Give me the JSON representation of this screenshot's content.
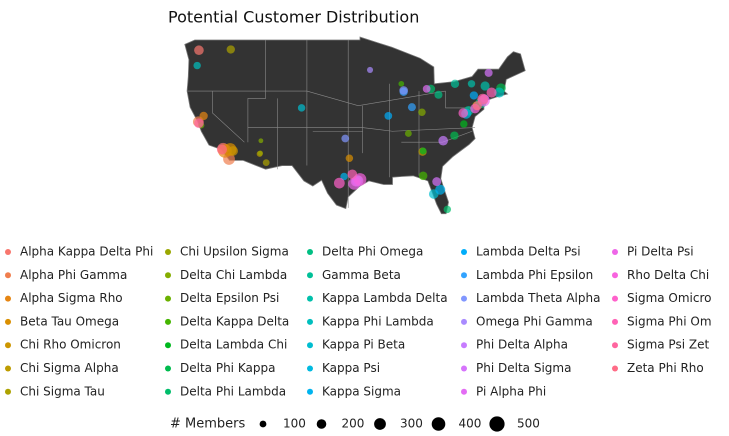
{
  "chart_data": {
    "type": "bubble-map",
    "title": "Potential Customer Distribution",
    "size_title": "# Members",
    "size_breaks": [
      100,
      200,
      300,
      400,
      500
    ],
    "series": [
      {
        "name": "Alpha Kappa Delta Phi",
        "color": "#F8766D",
        "x": [
          -118.2,
          -122.3
        ],
        "y": [
          34.1,
          47.6
        ],
        "sizes": [
          300,
          200
        ]
      },
      {
        "name": "Alpha Phi Gamma",
        "color": "#F07E4D",
        "x": [
          -122.4,
          -117.2
        ],
        "y": [
          37.8,
          32.7
        ],
        "sizes": [
          250,
          300
        ]
      },
      {
        "name": "Alpha Sigma Rho",
        "color": "#E68613",
        "x": [
          -121.5,
          -117.9
        ],
        "y": [
          38.6,
          33.8
        ],
        "sizes": [
          150,
          400
        ]
      },
      {
        "name": "Beta Tau Omega",
        "color": "#DA8F00",
        "x": [
          -117.0,
          -96.8
        ],
        "y": [
          34.0,
          32.8
        ],
        "sizes": [
          350,
          120
        ]
      },
      {
        "name": "Chi Rho Omicron",
        "color": "#CD9600",
        "x": [
          -116.5,
          -74.0
        ],
        "y": [
          33.8,
          40.7
        ],
        "sizes": [
          200,
          150
        ]
      },
      {
        "name": "Chi Sigma Alpha",
        "color": "#BE9C00",
        "x": [
          -84.4,
          -112.0
        ],
        "y": [
          33.7,
          33.4
        ],
        "sizes": [
          150,
          80
        ]
      },
      {
        "name": "Chi Sigma Tau",
        "color": "#ADA200",
        "x": [
          -116.9,
          -110.9
        ],
        "y": [
          47.7,
          32.2
        ],
        "sizes": [
          150,
          100
        ]
      },
      {
        "name": "Chi Upsilon Sigma",
        "color": "#9AA700",
        "x": [
          -111.9,
          -75.2
        ],
        "y": [
          33.5,
          40.0
        ],
        "sizes": [
          60,
          180
        ]
      },
      {
        "name": "Delta Chi Lambda",
        "color": "#85AD00",
        "x": [
          -111.8,
          -84.5
        ],
        "y": [
          35.2,
          39.1
        ],
        "sizes": [
          50,
          120
        ]
      },
      {
        "name": "Delta Epsilon Psi",
        "color": "#6BB100",
        "x": [
          -86.8,
          -121.9
        ],
        "y": [
          36.2,
          37.3
        ],
        "sizes": [
          100,
          80
        ]
      },
      {
        "name": "Delta Kappa Delta",
        "color": "#45B500",
        "x": [
          -88.0,
          -84.3
        ],
        "y": [
          43.0,
          30.4
        ],
        "sizes": [
          70,
          160
        ]
      },
      {
        "name": "Delta Lambda Chi",
        "color": "#00B81E",
        "x": [
          -84.3,
          -77.4
        ],
        "y": [
          33.8,
          37.5
        ],
        "sizes": [
          100,
          120
        ]
      },
      {
        "name": "Delta Phi Kappa",
        "color": "#00BB4E",
        "x": [
          -79.0,
          -71.1
        ],
        "y": [
          35.9,
          42.4
        ],
        "sizes": [
          150,
          200
        ]
      },
      {
        "name": "Delta Phi Lambda",
        "color": "#00BD6B",
        "x": [
          -80.2,
          -83.0
        ],
        "y": [
          25.8,
          42.3
        ],
        "sizes": [
          120,
          160
        ]
      },
      {
        "name": "Delta Phi Omega",
        "color": "#00BF83",
        "x": [
          -74.5,
          -81.7
        ],
        "y": [
          40.4,
          41.5
        ],
        "sizes": [
          250,
          140
        ]
      },
      {
        "name": "Gamma Beta",
        "color": "#00C098",
        "x": [
          -76.6,
          -78.9
        ],
        "y": [
          39.3,
          43.0
        ],
        "sizes": [
          200,
          150
        ]
      },
      {
        "name": "Kappa Lambda Delta",
        "color": "#00C0AB",
        "x": [
          -73.8,
          -76.1
        ],
        "y": [
          42.7,
          43.0
        ],
        "sizes": [
          180,
          120
        ]
      },
      {
        "name": "Kappa Phi Lambda",
        "color": "#00BFBE",
        "x": [
          -71.4,
          -122.6
        ],
        "y": [
          41.8,
          45.5
        ],
        "sizes": [
          220,
          120
        ]
      },
      {
        "name": "Kappa Pi Beta",
        "color": "#00BDD0",
        "x": [
          -104.9,
          -82.5
        ],
        "y": [
          39.7,
          27.9
        ],
        "sizes": [
          120,
          200
        ]
      },
      {
        "name": "Kappa Psi",
        "color": "#00BAE0",
        "x": [
          -77.0,
          -95.4
        ],
        "y": [
          38.9,
          29.8
        ],
        "sizes": [
          220,
          180
        ]
      },
      {
        "name": "Kappa Sigma",
        "color": "#00B4EF",
        "x": [
          -81.4,
          -97.7
        ],
        "y": [
          28.5,
          30.3
        ],
        "sizes": [
          220,
          120
        ]
      },
      {
        "name": "Lambda Delta Psi",
        "color": "#00ADFA",
        "x": [
          -90.2,
          -75.7
        ],
        "y": [
          38.6,
          41.4
        ],
        "sizes": [
          130,
          150
        ]
      },
      {
        "name": "Lambda Phi Epsilon",
        "color": "#32A3FF",
        "x": [
          -87.6,
          -86.2
        ],
        "y": [
          41.9,
          39.8
        ],
        "sizes": [
          150,
          140
        ]
      },
      {
        "name": "Lambda Theta Alpha",
        "color": "#8197FF",
        "x": [
          -97.5,
          -87.6
        ],
        "y": [
          35.5,
          42.1
        ],
        "sizes": [
          130,
          160
        ]
      },
      {
        "name": "Omega Phi Gamma",
        "color": "#A98BFF",
        "x": [
          -93.3,
          -73.9
        ],
        "y": [
          44.9,
          41.0
        ],
        "sizes": [
          80,
          150
        ]
      },
      {
        "name": "Phi Delta Alpha",
        "color": "#C77CFF",
        "x": [
          -95.4,
          -80.9
        ],
        "y": [
          29.7,
          35.2
        ],
        "sizes": [
          280,
          200
        ]
      },
      {
        "name": "Phi Delta Sigma",
        "color": "#D674FC",
        "x": [
          -82.0,
          -73.2
        ],
        "y": [
          29.6,
          44.5
        ],
        "sizes": [
          170,
          140
        ]
      },
      {
        "name": "Pi Alpha Phi",
        "color": "#E36CF4",
        "x": [
          -83.7,
          -95.7
        ],
        "y": [
          42.3,
          29.6
        ],
        "sizes": [
          130,
          220
        ]
      },
      {
        "name": "Pi Delta Psi",
        "color": "#EE66E8",
        "x": [
          -96.0,
          -74.0
        ],
        "y": [
          29.3,
          40.7
        ],
        "sizes": [
          300,
          300
        ]
      },
      {
        "name": "Rho Delta Chi",
        "color": "#F863DF",
        "x": [
          -95.0,
          -75.5
        ],
        "y": [
          29.9,
          39.6
        ],
        "sizes": [
          350,
          200
        ]
      },
      {
        "name": "Sigma Omicro",
        "color": "#FF61CB",
        "x": [
          -98.5,
          -77.5
        ],
        "y": [
          29.4,
          39.0
        ],
        "sizes": [
          250,
          200
        ]
      },
      {
        "name": "Sigma Phi Om",
        "color": "#FF62B6",
        "x": [
          -96.3,
          -72.7
        ],
        "y": [
          30.6,
          41.8
        ],
        "sizes": [
          200,
          220
        ]
      },
      {
        "name": "Sigma Psi Zet",
        "color": "#FF659F",
        "x": [
          -74.2,
          -122.3
        ],
        "y": [
          40.9,
          37.6
        ],
        "sizes": [
          250,
          200
        ]
      },
      {
        "name": "Zeta Phi Rho",
        "color": "#FF6C87",
        "x": [
          -75.1,
          -118.4
        ],
        "y": [
          40.0,
          34.0
        ],
        "sizes": [
          180,
          220
        ]
      }
    ]
  }
}
